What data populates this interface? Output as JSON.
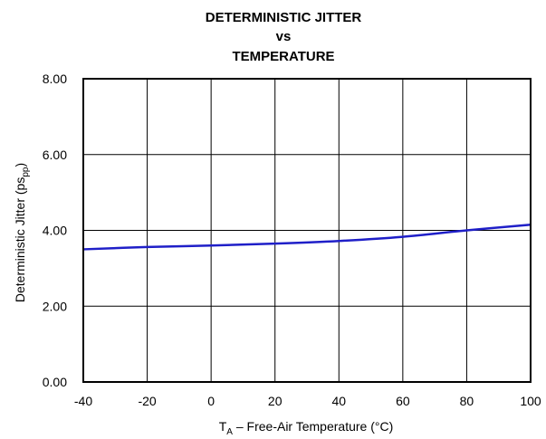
{
  "chart_data": {
    "type": "line",
    "title_lines": [
      "DETERMINISTIC JITTER",
      "vs",
      "TEMPERATURE"
    ],
    "xlabel": {
      "main": "T",
      "sub": "A",
      "rest": " – Free-Air Temperature (°C)"
    },
    "ylabel": {
      "main": "Deterministic Jitter (ps",
      "sub": "pp",
      "rest": ")"
    },
    "xlim": [
      -40,
      100
    ],
    "ylim": [
      0,
      8
    ],
    "x_ticks": [
      "-40",
      "-20",
      "0",
      "20",
      "40",
      "60",
      "80",
      "100"
    ],
    "y_ticks": [
      "0.00",
      "2.00",
      "4.00",
      "6.00",
      "8.00"
    ],
    "grid": true,
    "line_color": "#1f1fc8",
    "series": [
      {
        "x": [
          -40,
          -20,
          0,
          20,
          40,
          60,
          80,
          100
        ],
        "y": [
          3.5,
          3.56,
          3.6,
          3.65,
          3.72,
          3.83,
          4.0,
          4.15
        ]
      }
    ]
  }
}
